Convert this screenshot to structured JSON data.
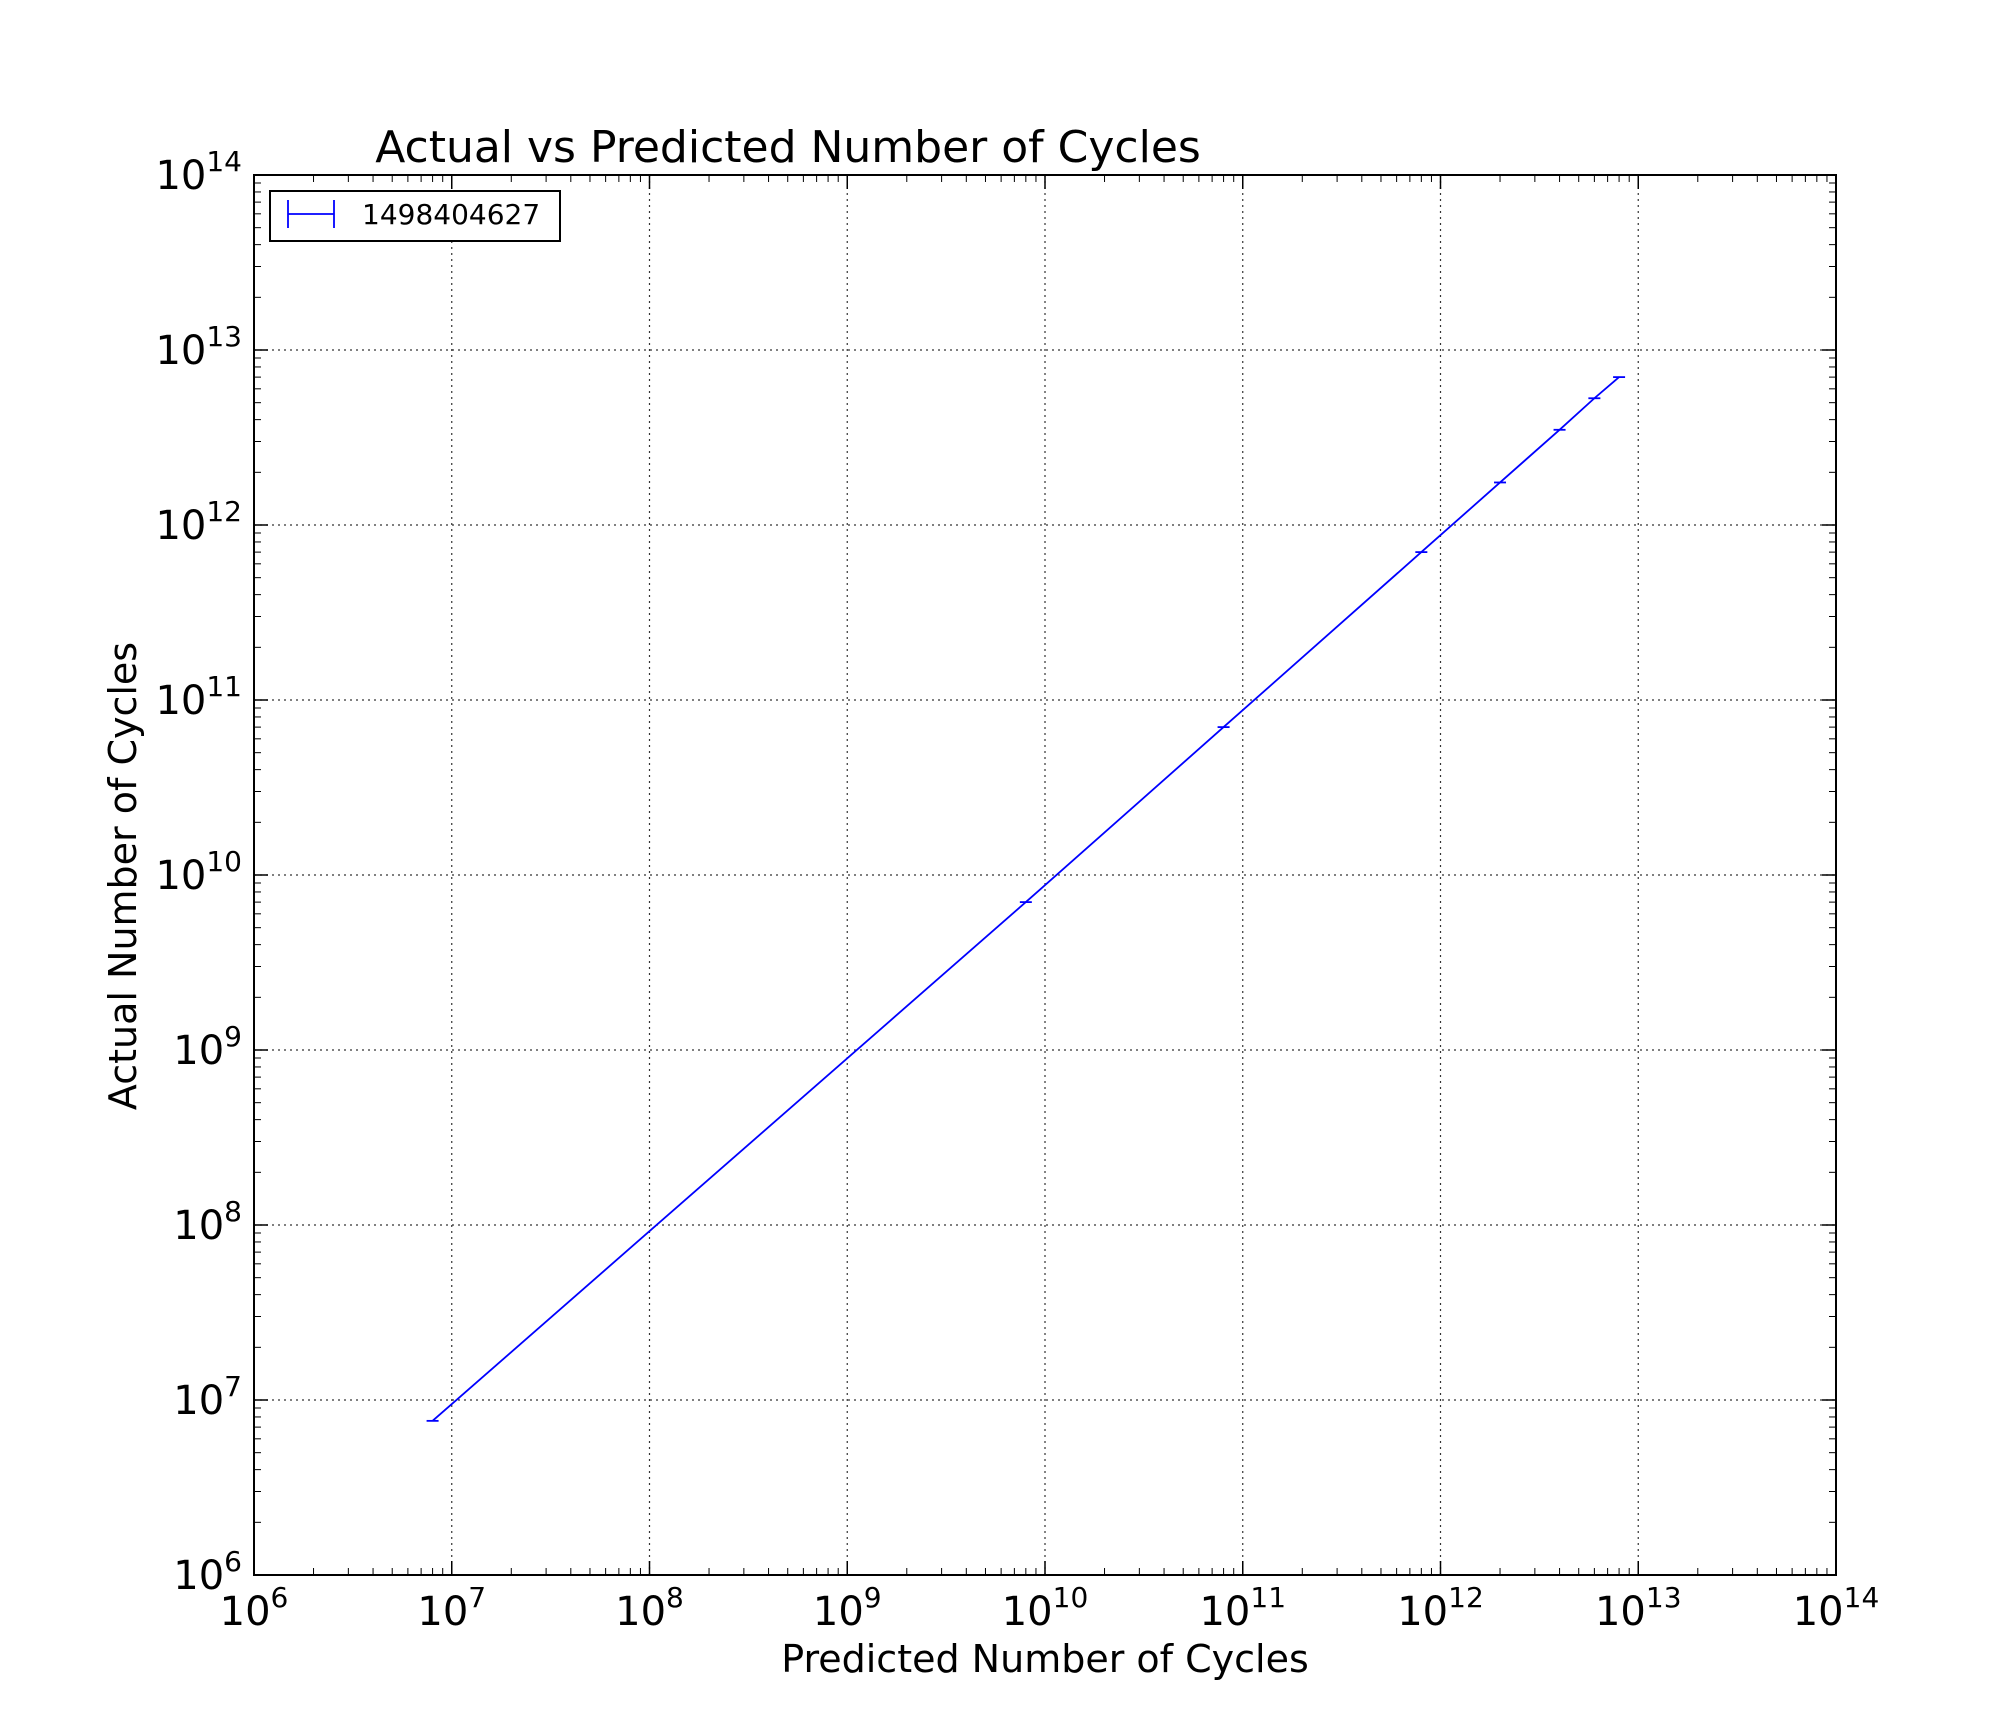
{
  "chart_data": {
    "type": "line",
    "title": "Actual vs Predicted Number of Cycles",
    "xlabel": "Predicted Number of Cycles",
    "ylabel": "Actual Number of Cycles",
    "xscale": "log",
    "yscale": "log",
    "xlim": [
      1000000,
      100000000000000
    ],
    "ylim": [
      1000000,
      100000000000000
    ],
    "grid": true,
    "legend_position": "top-left",
    "x_ticks": [
      {
        "value": 1000000,
        "base": "10",
        "exp": "6"
      },
      {
        "value": 10000000,
        "base": "10",
        "exp": "7"
      },
      {
        "value": 100000000,
        "base": "10",
        "exp": "8"
      },
      {
        "value": 1000000000,
        "base": "10",
        "exp": "9"
      },
      {
        "value": 10000000000,
        "base": "10",
        "exp": "10"
      },
      {
        "value": 100000000000,
        "base": "10",
        "exp": "11"
      },
      {
        "value": 1000000000000,
        "base": "10",
        "exp": "12"
      },
      {
        "value": 10000000000000,
        "base": "10",
        "exp": "13"
      },
      {
        "value": 100000000000000,
        "base": "10",
        "exp": "14"
      }
    ],
    "y_ticks": [
      {
        "value": 1000000,
        "base": "10",
        "exp": "6"
      },
      {
        "value": 10000000,
        "base": "10",
        "exp": "7"
      },
      {
        "value": 100000000,
        "base": "10",
        "exp": "8"
      },
      {
        "value": 1000000000,
        "base": "10",
        "exp": "9"
      },
      {
        "value": 10000000000,
        "base": "10",
        "exp": "10"
      },
      {
        "value": 100000000000,
        "base": "10",
        "exp": "11"
      },
      {
        "value": 1000000000000,
        "base": "10",
        "exp": "12"
      },
      {
        "value": 10000000000000,
        "base": "10",
        "exp": "13"
      },
      {
        "value": 100000000000000,
        "base": "10",
        "exp": "14"
      }
    ],
    "series": [
      {
        "name": "1498404627",
        "color": "#0000ff",
        "marker": "errorbar",
        "x": [
          8000000,
          8000000000,
          80000000000,
          800000000000,
          2000000000000,
          4000000000000,
          6000000000000,
          8000000000000
        ],
        "y": [
          7600000,
          7000000000,
          70000000000,
          700000000000,
          1750000000000,
          3500000000000,
          5300000000000,
          7000000000000
        ]
      }
    ]
  }
}
